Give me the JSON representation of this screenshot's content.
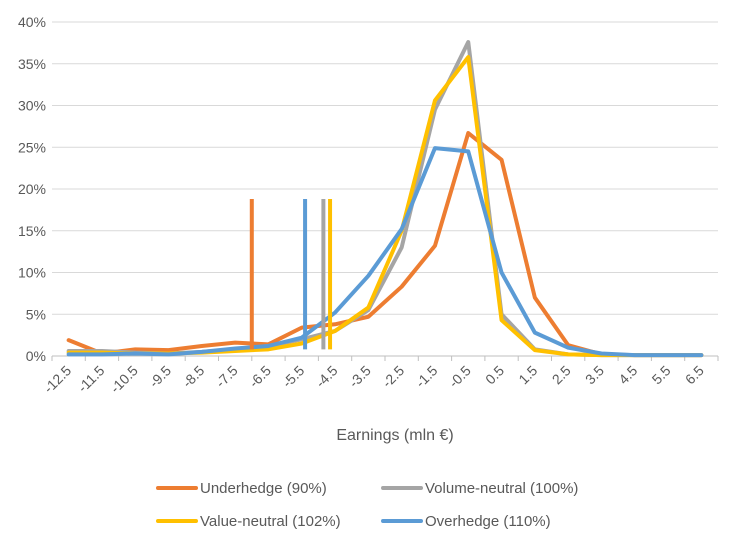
{
  "chart_data": {
    "type": "line",
    "xlabel": "Earnings (mln €)",
    "ylabel": "",
    "title": "",
    "ylim": [
      0,
      0.4
    ],
    "y_ticks": [
      0,
      0.05,
      0.1,
      0.15,
      0.2,
      0.25,
      0.3,
      0.35,
      0.4
    ],
    "y_tick_labels": [
      "0%",
      "5%",
      "10%",
      "15%",
      "20%",
      "25%",
      "30%",
      "35%",
      "40%"
    ],
    "x": [
      -12.5,
      -11.5,
      -10.5,
      -9.5,
      -8.5,
      -7.5,
      -6.5,
      -5.5,
      -4.5,
      -3.5,
      -2.5,
      -1.5,
      -0.5,
      0.5,
      1.5,
      2.5,
      3.5,
      4.5,
      5.5,
      6.5
    ],
    "x_tick_labels": [
      "-12.5",
      "-11.5",
      "-10.5",
      "-9.5",
      "-8.5",
      "-7.5",
      "-6.5",
      "-5.5",
      "-4.5",
      "-3.5",
      "-2.5",
      "-1.5",
      "-0.5",
      "0.5",
      "1.5",
      "2.5",
      "3.5",
      "4.5",
      "5.5",
      "6.5"
    ],
    "grid": true,
    "legend_position": "bottom",
    "series": [
      {
        "name": "Underhedge (90%)",
        "color": "#ED7D31",
        "values": [
          0.019,
          0.003,
          0.008,
          0.007,
          0.012,
          0.016,
          0.014,
          0.034,
          0.038,
          0.047,
          0.083,
          0.132,
          0.267,
          0.235,
          0.07,
          0.013,
          0.002,
          0.001,
          0.001,
          0.001
        ],
        "marker_x": -7.0
      },
      {
        "name": "Volume-neutral (100%)",
        "color": "#A5A5A5",
        "values": [
          0.006,
          0.006,
          0.004,
          0.003,
          0.005,
          0.008,
          0.012,
          0.02,
          0.03,
          0.055,
          0.13,
          0.295,
          0.376,
          0.05,
          0.008,
          0.002,
          0.001,
          0.001,
          0.001,
          0.001
        ],
        "marker_x": -4.85
      },
      {
        "name": "Value-neutral (102%)",
        "color": "#FFC000",
        "values": [
          0.004,
          0.004,
          0.003,
          0.003,
          0.004,
          0.006,
          0.008,
          0.015,
          0.03,
          0.058,
          0.15,
          0.306,
          0.358,
          0.043,
          0.007,
          0.002,
          0.001,
          0.001,
          0.001,
          0.001
        ],
        "marker_x": -4.65
      },
      {
        "name": "Overhedge (110%)",
        "color": "#5B9BD5",
        "values": [
          0.002,
          0.002,
          0.003,
          0.002,
          0.005,
          0.009,
          0.012,
          0.022,
          0.052,
          0.096,
          0.152,
          0.249,
          0.245,
          0.1,
          0.028,
          0.01,
          0.003,
          0.001,
          0.001,
          0.001
        ],
        "marker_x": -5.4
      }
    ]
  }
}
